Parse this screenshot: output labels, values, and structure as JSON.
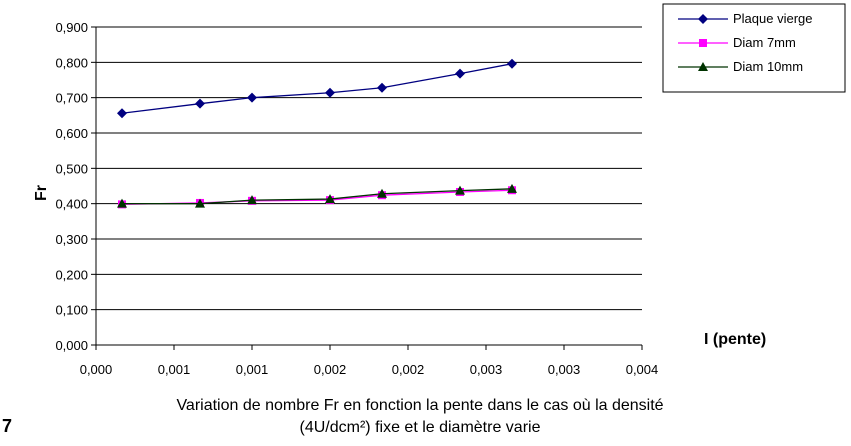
{
  "chart_data": {
    "type": "line",
    "x": [
      0.0002,
      0.0008,
      0.0012,
      0.0018,
      0.0022,
      0.0028,
      0.0032
    ],
    "x_tick_labels": [
      "0,000",
      "0,001",
      "0,001",
      "0,002",
      "0,002",
      "0,003",
      "0,003",
      "0,004"
    ],
    "y_tick_labels": [
      "0,000",
      "0,100",
      "0,200",
      "0,300",
      "0,400",
      "0,500",
      "0,600",
      "0,700",
      "0,800",
      "0,900"
    ],
    "xlim": [
      0.0,
      0.0042
    ],
    "ylim": [
      0.0,
      0.9
    ],
    "ylabel": "Fr",
    "xlabel": "I (pente)",
    "grid": "horizontal",
    "legend_position": "top-right",
    "series": [
      {
        "name": "Plaque vierge",
        "marker": "diamond",
        "color": "#000080",
        "values": [
          0.656,
          0.683,
          0.7,
          0.714,
          0.728,
          0.768,
          0.796
        ]
      },
      {
        "name": "Diam 7mm",
        "marker": "square",
        "color": "#ff00ff",
        "values": [
          0.398,
          0.402,
          0.408,
          0.41,
          0.424,
          0.433,
          0.438
        ]
      },
      {
        "name": "Diam 10mm",
        "marker": "triangle",
        "color": "#003300",
        "values": [
          0.4,
          0.4,
          0.41,
          0.413,
          0.428,
          0.437,
          0.442
        ]
      }
    ]
  },
  "caption": {
    "line1": "Variation de nombre Fr en fonction la pente dans le cas où la densité",
    "line2": "(4U/dcm²) fixe et le diamètre varie"
  },
  "page_number": "7"
}
